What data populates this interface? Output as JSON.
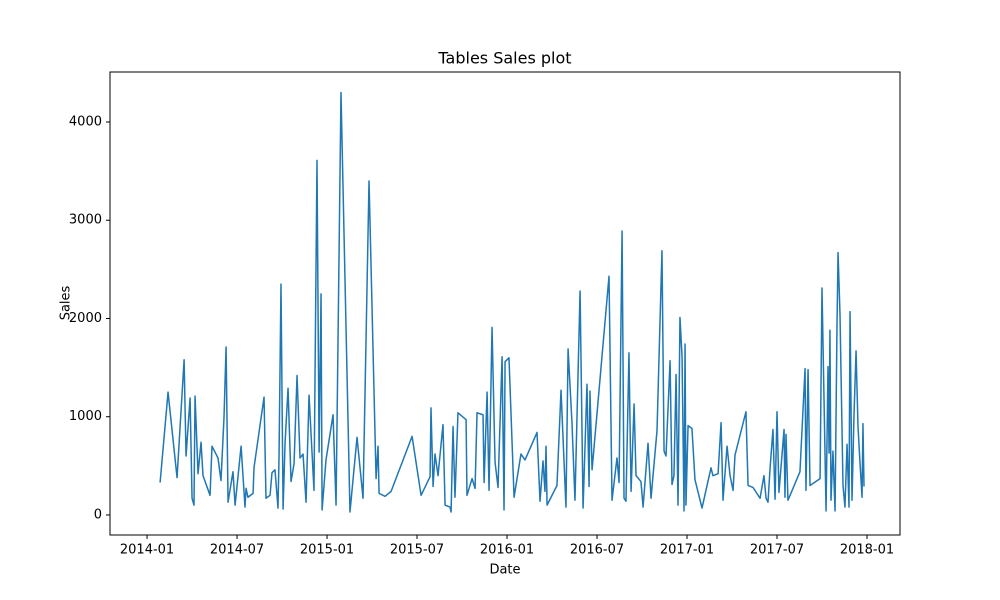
{
  "chart_data": {
    "type": "line",
    "title": "Tables Sales plot",
    "x_label": "Date",
    "y_label": "Sales",
    "x": [
      0.87,
      1.4,
      2,
      2.47,
      2.6,
      2.87,
      3,
      3.13,
      3.2,
      3.4,
      3.6,
      3.73,
      4.2,
      4.33,
      4.73,
      4.93,
      5.13,
      5.27,
      5.4,
      5.73,
      5.87,
      6.27,
      6.53,
      6.6,
      6.73,
      7.07,
      7.13,
      7.8,
      7.93,
      8.2,
      8.33,
      8.53,
      8.73,
      8.8,
      8.93,
      9.07,
      9.2,
      9.4,
      9.6,
      9.8,
      10,
      10.2,
      10.4,
      10.6,
      10.8,
      11.13,
      11.33,
      11.47,
      11.6,
      11.67,
      11.93,
      12.4,
      12.6,
      12.93,
      13.53,
      14,
      14.4,
      14.8,
      15.27,
      15.4,
      15.47,
      15.87,
      16.27,
      17.67,
      18.27,
      18.87,
      18.93,
      19.07,
      19.2,
      19.4,
      19.73,
      19.87,
      20.2,
      20.27,
      20.4,
      20.53,
      20.73,
      21.27,
      21.33,
      21.67,
      21.87,
      22,
      22.4,
      22.47,
      22.67,
      22.8,
      23,
      23.2,
      23.4,
      23.67,
      23.8,
      23.87,
      24.13,
      24.47,
      24.93,
      25.2,
      26,
      26.2,
      26.4,
      26.53,
      26.6,
      26.67,
      27.33,
      27.6,
      27.93,
      28.07,
      28.33,
      28.53,
      28.87,
      29.07,
      29.33,
      29.47,
      29.53,
      29.67,
      30.8,
      31,
      31.33,
      31.47,
      31.67,
      31.8,
      31.93,
      32.13,
      32.27,
      32.47,
      32.6,
      32.93,
      33.07,
      33.4,
      33.6,
      34,
      34.33,
      34.47,
      34.6,
      34.87,
      35,
      35.13,
      35.27,
      35.4,
      35.53,
      35.67,
      35.8,
      35.87,
      35.93,
      36.07,
      36.33,
      36.53,
      37,
      37.6,
      37.73,
      38.07,
      38.27,
      38.4,
      38.67,
      38.87,
      39.07,
      39.2,
      39.93,
      40.07,
      40.4,
      40.87,
      41.13,
      41.27,
      41.4,
      41.53,
      41.73,
      41.87,
      42,
      42.13,
      42.47,
      42.53,
      42.6,
      42.73,
      42.87,
      43.53,
      43.87,
      43.93,
      44.07,
      44.2,
      44.87,
      45,
      45.27,
      45.4,
      45.47,
      45.53,
      45.6,
      45.73,
      45.87,
      46,
      46.07,
      46.2,
      46.4,
      46.53,
      46.67,
      46.8,
      46.87,
      47,
      47.13,
      47.27,
      47.4,
      47.53,
      47.67,
      47.73,
      47.8
    ],
    "series": [
      {
        "name": "Sales",
        "color": "#1f77b4",
        "values": [
          330,
          1250,
          380,
          1580,
          600,
          1190,
          170,
          100,
          1210,
          420,
          740,
          400,
          200,
          700,
          580,
          350,
          990,
          1710,
          130,
          440,
          100,
          700,
          80,
          270,
          180,
          220,
          480,
          1200,
          170,
          200,
          430,
          460,
          70,
          600,
          2350,
          60,
          730,
          1290,
          340,
          520,
          1420,
          580,
          620,
          130,
          1220,
          250,
          3610,
          640,
          2250,
          50,
          560,
          1020,
          100,
          4300,
          30,
          790,
          170,
          3400,
          370,
          700,
          220,
          190,
          240,
          800,
          200,
          390,
          1090,
          290,
          620,
          400,
          920,
          100,
          80,
          30,
          900,
          180,
          1040,
          970,
          200,
          370,
          270,
          1040,
          1020,
          330,
          1250,
          250,
          1910,
          540,
          280,
          1610,
          50,
          1560,
          1600,
          180,
          620,
          560,
          840,
          140,
          550,
          240,
          700,
          100,
          300,
          1270,
          80,
          1690,
          940,
          150,
          2280,
          70,
          1330,
          290,
          1260,
          460,
          2430,
          150,
          580,
          330,
          2890,
          170,
          140,
          1650,
          240,
          1130,
          400,
          340,
          80,
          730,
          170,
          860,
          2690,
          650,
          600,
          1570,
          310,
          400,
          1430,
          100,
          2010,
          1610,
          40,
          1740,
          100,
          910,
          880,
          360,
          70,
          480,
          400,
          420,
          940,
          150,
          700,
          400,
          250,
          610,
          1050,
          300,
          280,
          170,
          400,
          170,
          130,
          460,
          870,
          160,
          1050,
          230,
          870,
          180,
          820,
          150,
          200,
          440,
          1490,
          250,
          1480,
          300,
          370,
          2310,
          40,
          1510,
          630,
          1880,
          150,
          650,
          40,
          1930,
          2670,
          2040,
          300,
          80,
          720,
          80,
          2070,
          150,
          1000,
          1670,
          900,
          540,
          180,
          930,
          290
        ]
      }
    ],
    "xlim": [
      -2.47,
      50.2
    ],
    "ylim": [
      -204,
      4509
    ],
    "xticks": [
      {
        "value": 0,
        "label": "2014-01"
      },
      {
        "value": 6,
        "label": "2014-07"
      },
      {
        "value": 12,
        "label": "2015-01"
      },
      {
        "value": 18,
        "label": "2015-07"
      },
      {
        "value": 24,
        "label": "2016-01"
      },
      {
        "value": 30,
        "label": "2016-07"
      },
      {
        "value": 36,
        "label": "2017-01"
      },
      {
        "value": 42,
        "label": "2017-07"
      },
      {
        "value": 48,
        "label": "2018-01"
      }
    ],
    "yticks": [
      0,
      1000,
      2000,
      3000,
      4000
    ]
  }
}
